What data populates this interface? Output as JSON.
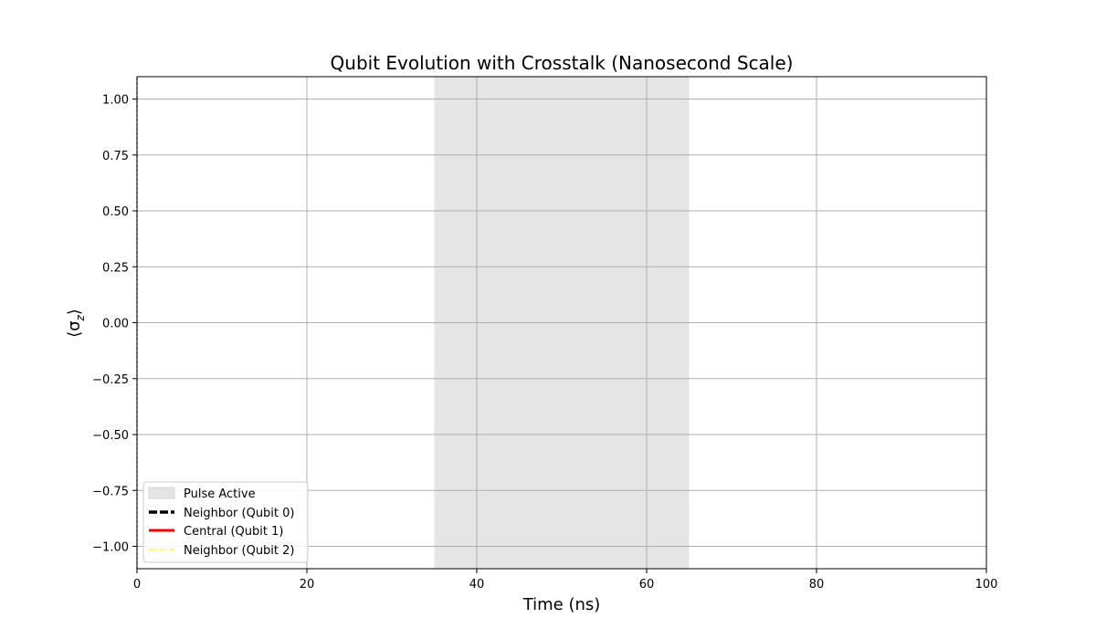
{
  "chart_data": {
    "type": "line",
    "title": "Qubit Evolution with Crosstalk (Nanosecond Scale)",
    "xlabel": "Time (ns)",
    "ylabel_main": "⟨σ",
    "ylabel_sub": "z",
    "ylabel_close": "⟩",
    "xlim": [
      0,
      100
    ],
    "ylim": [
      -1.1,
      1.1
    ],
    "x_ticks": [
      0,
      20,
      40,
      60,
      80,
      100
    ],
    "x_tick_labels": [
      "0",
      "20",
      "40",
      "60",
      "80",
      "100"
    ],
    "y_ticks": [
      -1.0,
      -0.75,
      -0.5,
      -0.25,
      0.0,
      0.25,
      0.5,
      0.75,
      1.0
    ],
    "y_tick_labels": [
      "−1.00",
      "−0.75",
      "−0.50",
      "−0.25",
      "0.00",
      "0.25",
      "0.50",
      "0.75",
      "1.00"
    ],
    "grid": true,
    "legend_position": "lower-left",
    "pulse_region": {
      "label": "Pulse Active",
      "x_start": 35,
      "x_end": 65,
      "color": "#e5e5e5"
    },
    "series": [
      {
        "name": "Neighbor (Qubit 0)",
        "color": "#000000",
        "style": "dashed",
        "x": [
          0,
          0
        ],
        "y": [
          -1.1,
          1.1
        ]
      },
      {
        "name": "Central (Qubit 1)",
        "color": "#ff0000",
        "style": "solid",
        "x": [],
        "y": []
      },
      {
        "name": "Neighbor (Qubit 2)",
        "color": "#ffff00",
        "style": "dashdot",
        "x": [],
        "y": []
      }
    ]
  }
}
